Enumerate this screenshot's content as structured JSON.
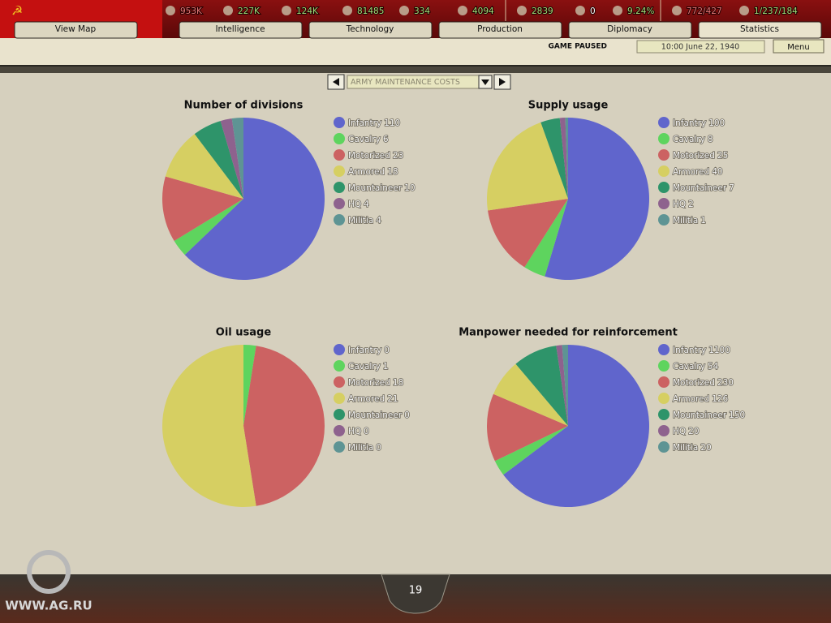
{
  "top_bar": [
    {
      "text": "953K",
      "color": "#e87878"
    },
    {
      "text": "227K",
      "color": "#9ee07a"
    },
    {
      "text": "124K",
      "color": "#9ee07a"
    },
    {
      "text": "81485",
      "color": "#9ee07a"
    },
    {
      "text": "334",
      "color": "#9ee07a"
    },
    {
      "text": "4094",
      "color": "#9ee07a"
    },
    {
      "text": "2839",
      "color": "#9ee07a"
    },
    {
      "text": "0",
      "color": "#ffffff"
    },
    {
      "text": "9.24%",
      "color": "#9ee07a"
    },
    {
      "text": "772/427",
      "color": "#e87878"
    },
    {
      "text": "1/237/184",
      "color": "#9ee07a"
    }
  ],
  "tabs": [
    "View Map",
    "Intelligence",
    "Technology",
    "Production",
    "Diplomacy",
    "Statistics"
  ],
  "status": {
    "paused": "GAME PAUSED",
    "date": "10:00 June 22, 1940",
    "menu": "Menu"
  },
  "selector": "ARMY MAINTENANCE COSTS",
  "page_number": "19",
  "watermark": "WWW.AG.RU",
  "chart_data": [
    {
      "type": "pie",
      "title": "Number of divisions",
      "categories": [
        "Infantry",
        "Cavalry",
        "Motorized",
        "Armored",
        "Mountaineer",
        "HQ",
        "Militia"
      ],
      "values": [
        110,
        6,
        23,
        18,
        10,
        4,
        4
      ],
      "colors": [
        "#6065cc",
        "#5ed45e",
        "#cc6262",
        "#d6cf62",
        "#2e946a",
        "#8e628e",
        "#5e9494"
      ]
    },
    {
      "type": "pie",
      "title": "Supply usage",
      "categories": [
        "Infantry",
        "Cavalry",
        "Motorized",
        "Armored",
        "Mountaineer",
        "HQ",
        "Militia"
      ],
      "values": [
        100,
        8,
        25,
        40,
        7,
        2,
        1
      ],
      "colors": [
        "#6065cc",
        "#5ed45e",
        "#cc6262",
        "#d6cf62",
        "#2e946a",
        "#8e628e",
        "#5e9494"
      ]
    },
    {
      "type": "pie",
      "title": "Oil usage",
      "categories": [
        "Infantry",
        "Cavalry",
        "Motorized",
        "Armored",
        "Mountaineer",
        "HQ",
        "Militia"
      ],
      "values": [
        0,
        1,
        18,
        21,
        0,
        0,
        0
      ],
      "colors": [
        "#6065cc",
        "#5ed45e",
        "#cc6262",
        "#d6cf62",
        "#2e946a",
        "#8e628e",
        "#5e9494"
      ]
    },
    {
      "type": "pie",
      "title": "Manpower needed for reinforcement",
      "categories": [
        "Infantry",
        "Cavalry",
        "Motorized",
        "Armored",
        "Mountaineer",
        "HQ",
        "Militia"
      ],
      "values": [
        1100,
        54,
        230,
        126,
        150,
        20,
        20
      ],
      "colors": [
        "#6065cc",
        "#5ed45e",
        "#cc6262",
        "#d6cf62",
        "#2e946a",
        "#8e628e",
        "#5e9494"
      ]
    }
  ]
}
